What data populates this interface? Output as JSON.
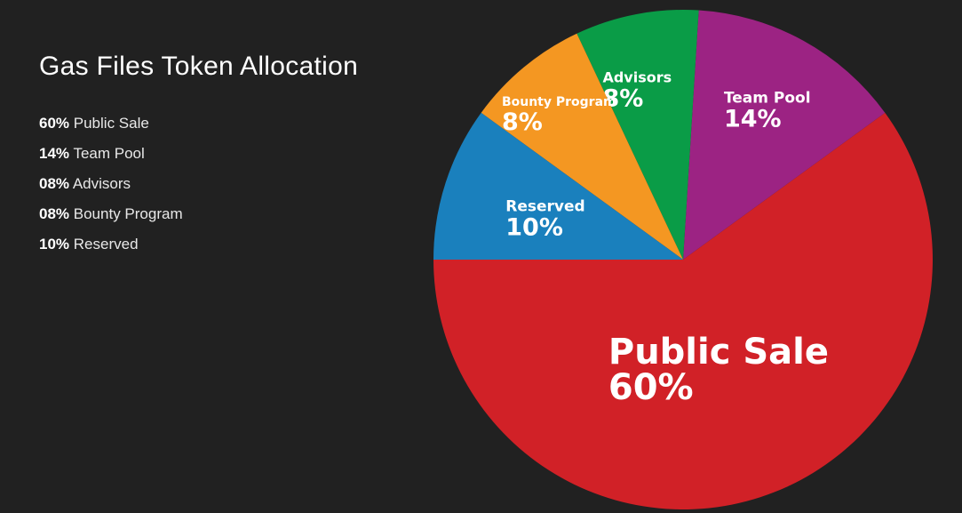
{
  "chart_data": {
    "type": "pie",
    "title": "Gas Files Token Allocation",
    "legend": [
      {
        "pct": "60%",
        "label": "Public Sale"
      },
      {
        "pct": "14%",
        "label": "Team Pool"
      },
      {
        "pct": "08%",
        "label": "Advisors"
      },
      {
        "pct": "08%",
        "label": "Bounty Program"
      },
      {
        "pct": "10%",
        "label": "Reserved"
      }
    ],
    "slices": [
      {
        "name": "Public Sale",
        "value": 60,
        "pct_label": "60%",
        "color": "#d12127"
      },
      {
        "name": "Team Pool",
        "value": 14,
        "pct_label": "14%",
        "color": "#9c2383"
      },
      {
        "name": "Advisors",
        "value": 8,
        "pct_label": "8%",
        "color": "#0a9c47"
      },
      {
        "name": "Bounty Program",
        "value": 8,
        "pct_label": "8%",
        "color": "#f49722"
      },
      {
        "name": "Reserved",
        "value": 10,
        "pct_label": "10%",
        "color": "#1a80bd"
      }
    ]
  }
}
